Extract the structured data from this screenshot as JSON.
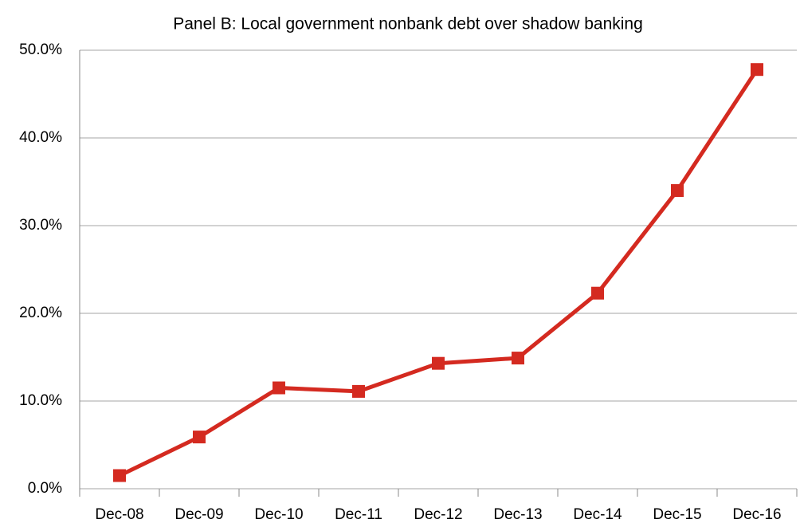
{
  "chart_data": {
    "type": "line",
    "title": "Panel B: Local government nonbank debt over shadow banking",
    "categories": [
      "Dec-08",
      "Dec-09",
      "Dec-10",
      "Dec-11",
      "Dec-12",
      "Dec-13",
      "Dec-14",
      "Dec-15",
      "Dec-16"
    ],
    "values": [
      1.5,
      5.9,
      11.5,
      11.1,
      14.3,
      14.9,
      22.3,
      34.0,
      47.8
    ],
    "color": "#d42a20",
    "ylim": [
      0,
      50
    ],
    "yticks": [
      {
        "value": 0,
        "label": "0.0%"
      },
      {
        "value": 10,
        "label": "10.0%"
      },
      {
        "value": 20,
        "label": "20.0%"
      },
      {
        "value": 30,
        "label": "30.0%"
      },
      {
        "value": 40,
        "label": "40.0%"
      },
      {
        "value": 50,
        "label": "50.0%"
      }
    ],
    "grid": true
  }
}
